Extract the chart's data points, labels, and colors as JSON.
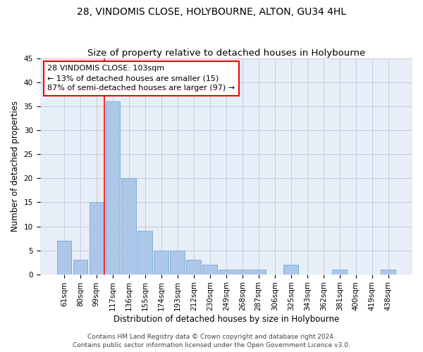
{
  "title": "28, VINDOMIS CLOSE, HOLYBOURNE, ALTON, GU34 4HL",
  "subtitle": "Size of property relative to detached houses in Holybourne",
  "xlabel": "Distribution of detached houses by size in Holybourne",
  "ylabel": "Number of detached properties",
  "categories": [
    "61sqm",
    "80sqm",
    "99sqm",
    "117sqm",
    "136sqm",
    "155sqm",
    "174sqm",
    "193sqm",
    "212sqm",
    "230sqm",
    "249sqm",
    "268sqm",
    "287sqm",
    "306sqm",
    "325sqm",
    "343sqm",
    "362sqm",
    "381sqm",
    "400sqm",
    "419sqm",
    "438sqm"
  ],
  "values": [
    7,
    3,
    15,
    36,
    20,
    9,
    5,
    5,
    3,
    2,
    1,
    1,
    1,
    0,
    2,
    0,
    0,
    1,
    0,
    0,
    1
  ],
  "bar_color": "#aec6e8",
  "bar_edge_color": "#6baed6",
  "red_line_x": 2.5,
  "annotation_text": "28 VINDOMIS CLOSE: 103sqm\n← 13% of detached houses are smaller (15)\n87% of semi-detached houses are larger (97) →",
  "annotation_box_color": "white",
  "annotation_box_edge": "red",
  "ylim": [
    0,
    45
  ],
  "yticks": [
    0,
    5,
    10,
    15,
    20,
    25,
    30,
    35,
    40,
    45
  ],
  "footer1": "Contains HM Land Registry data © Crown copyright and database right 2024.",
  "footer2": "Contains public sector information licensed under the Open Government Licence v3.0.",
  "background_color": "#e8eef7",
  "grid_color": "#c0c8d8",
  "title_fontsize": 10,
  "subtitle_fontsize": 9.5,
  "axis_label_fontsize": 8.5,
  "tick_fontsize": 7.5,
  "annotation_fontsize": 8,
  "footer_fontsize": 6.5
}
